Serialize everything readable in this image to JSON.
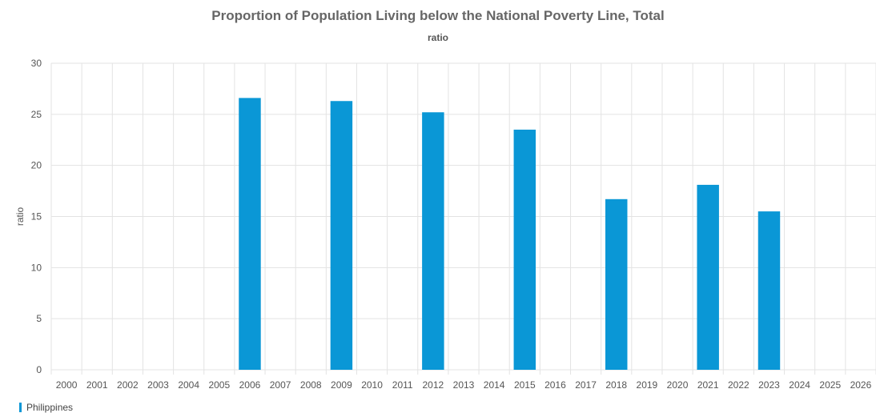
{
  "chart_data": {
    "type": "bar",
    "title": "Proportion of Population Living below the National Poverty Line, Total",
    "subtitle": "ratio",
    "ylabel": "ratio",
    "xlabel": "",
    "ylim": [
      0,
      30
    ],
    "yticks": [
      0,
      5,
      10,
      15,
      20,
      25,
      30
    ],
    "grid": true,
    "legend_position": "bottom-left",
    "categories": [
      "2000",
      "2001",
      "2002",
      "2003",
      "2004",
      "2005",
      "2006",
      "2007",
      "2008",
      "2009",
      "2010",
      "2011",
      "2012",
      "2013",
      "2014",
      "2015",
      "2016",
      "2017",
      "2018",
      "2019",
      "2020",
      "2021",
      "2022",
      "2023",
      "2024",
      "2025",
      "2026"
    ],
    "series": [
      {
        "name": "Philippines",
        "color": "#0a97d6",
        "values": [
          null,
          null,
          null,
          null,
          null,
          null,
          26.6,
          null,
          null,
          26.3,
          null,
          null,
          25.2,
          null,
          null,
          23.5,
          null,
          null,
          16.7,
          null,
          null,
          18.1,
          null,
          15.5,
          null,
          null,
          null
        ]
      }
    ]
  }
}
